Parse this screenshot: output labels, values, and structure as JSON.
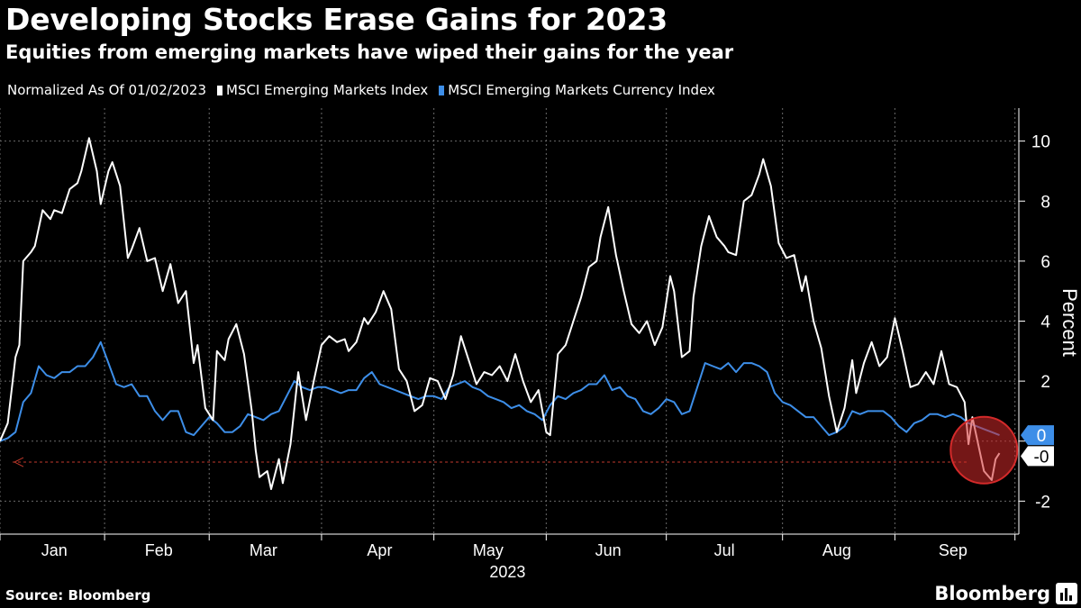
{
  "header": {
    "title": "Developing Stocks Erase Gains for 2023",
    "subtitle": "Equities from emerging markets have wiped their gains for the year"
  },
  "legend": {
    "note": "Normalized As Of 01/02/2023",
    "items": [
      {
        "label": "MSCI Emerging Markets Index",
        "color": "#ffffff"
      },
      {
        "label": "MSCI Emerging Markets Currency Index",
        "color": "#3d8ee8"
      }
    ]
  },
  "footer": {
    "source": "Source: Bloomberg",
    "brand": "Bloomberg"
  },
  "chart_data": {
    "type": "line",
    "title": "Developing Stocks Erase Gains for 2023",
    "subtitle": "Equities from emerging markets have wiped their gains for the year",
    "ylabel": "Percent",
    "xlabel": "2023",
    "ylim": [
      -3.1,
      11.1
    ],
    "xlim": [
      0,
      263
    ],
    "y_ticks": [
      -2,
      0,
      2,
      4,
      6,
      8,
      10
    ],
    "y_tick_labels": [
      "-2",
      "0",
      "2",
      "4",
      "6",
      "8",
      "10"
    ],
    "x_ticks": [
      14,
      41,
      68,
      98,
      126,
      157,
      187,
      216,
      246
    ],
    "x_tick_labels": [
      "Jan",
      "Feb",
      "Mar",
      "Apr",
      "May",
      "Jun",
      "Jul",
      "Aug",
      "Sep"
    ],
    "x_year_label": "2023",
    "x_year_pos": 131,
    "grid": true,
    "reference_line": {
      "value": -0.7,
      "color": "#c0392b"
    },
    "end_labels": [
      {
        "text": "0",
        "value": 0.2,
        "color": "#3d8ee8"
      },
      {
        "text": "-0",
        "value": -0.5,
        "color": "#ffffff"
      }
    ],
    "highlight": {
      "x": 254,
      "y": -0.3,
      "color": "#d42a2a"
    },
    "series": [
      {
        "name": "MSCI Emerging Markets Index",
        "color": "#ffffff",
        "points": [
          [
            0,
            0
          ],
          [
            2,
            0.6
          ],
          [
            4,
            2.8
          ],
          [
            5,
            3.2
          ],
          [
            6,
            6.0
          ],
          [
            8,
            6.3
          ],
          [
            9,
            6.5
          ],
          [
            11,
            7.7
          ],
          [
            13,
            7.4
          ],
          [
            14,
            7.7
          ],
          [
            16,
            7.6
          ],
          [
            18,
            8.4
          ],
          [
            20,
            8.6
          ],
          [
            21,
            9.0
          ],
          [
            23,
            10.1
          ],
          [
            25,
            9.0
          ],
          [
            26,
            7.9
          ],
          [
            28,
            9.0
          ],
          [
            29,
            9.3
          ],
          [
            31,
            8.5
          ],
          [
            33,
            6.1
          ],
          [
            34,
            6.4
          ],
          [
            36,
            7.1
          ],
          [
            38,
            6.0
          ],
          [
            40,
            6.1
          ],
          [
            42,
            5.0
          ],
          [
            44,
            5.9
          ],
          [
            46,
            4.6
          ],
          [
            48,
            5.0
          ],
          [
            50,
            2.6
          ],
          [
            51,
            3.2
          ],
          [
            53,
            1.1
          ],
          [
            55,
            0.7
          ],
          [
            56,
            3.0
          ],
          [
            58,
            2.7
          ],
          [
            59,
            3.4
          ],
          [
            61,
            3.9
          ],
          [
            63,
            2.9
          ],
          [
            65,
            1.0
          ],
          [
            66,
            -0.3
          ],
          [
            67,
            -1.2
          ],
          [
            69,
            -1.0
          ],
          [
            70,
            -1.6
          ],
          [
            72,
            -0.6
          ],
          [
            73,
            -1.4
          ],
          [
            75,
            -0.1
          ],
          [
            77,
            2.3
          ],
          [
            79,
            0.7
          ],
          [
            81,
            2.0
          ],
          [
            83,
            3.2
          ],
          [
            85,
            3.5
          ],
          [
            87,
            3.3
          ],
          [
            89,
            3.4
          ],
          [
            90,
            3.0
          ],
          [
            92,
            3.3
          ],
          [
            94,
            4.1
          ],
          [
            95,
            3.9
          ],
          [
            97,
            4.3
          ],
          [
            99,
            5.0
          ],
          [
            101,
            4.4
          ],
          [
            103,
            2.4
          ],
          [
            105,
            2.0
          ],
          [
            107,
            1.0
          ],
          [
            109,
            1.2
          ],
          [
            111,
            2.1
          ],
          [
            113,
            2.0
          ],
          [
            115,
            1.4
          ],
          [
            117,
            2.2
          ],
          [
            119,
            3.5
          ],
          [
            121,
            2.7
          ],
          [
            123,
            1.9
          ],
          [
            125,
            2.3
          ],
          [
            127,
            2.2
          ],
          [
            129,
            2.5
          ],
          [
            131,
            2.0
          ],
          [
            133,
            2.9
          ],
          [
            135,
            2.0
          ],
          [
            137,
            1.3
          ],
          [
            139,
            1.7
          ],
          [
            141,
            0.3
          ],
          [
            142,
            0.2
          ],
          [
            144,
            2.9
          ],
          [
            146,
            3.2
          ],
          [
            148,
            4.0
          ],
          [
            150,
            4.8
          ],
          [
            152,
            5.8
          ],
          [
            154,
            6.0
          ],
          [
            155,
            6.8
          ],
          [
            157,
            7.8
          ],
          [
            159,
            6.2
          ],
          [
            161,
            5.0
          ],
          [
            163,
            3.9
          ],
          [
            165,
            3.6
          ],
          [
            167,
            4.0
          ],
          [
            169,
            3.2
          ],
          [
            171,
            3.8
          ],
          [
            173,
            5.5
          ],
          [
            174,
            5.0
          ],
          [
            176,
            2.8
          ],
          [
            178,
            3.0
          ],
          [
            179,
            4.8
          ],
          [
            181,
            6.5
          ],
          [
            183,
            7.5
          ],
          [
            185,
            6.8
          ],
          [
            187,
            6.5
          ],
          [
            188,
            6.3
          ],
          [
            190,
            6.2
          ],
          [
            192,
            8.0
          ],
          [
            194,
            8.2
          ],
          [
            196,
            8.9
          ],
          [
            197,
            9.4
          ],
          [
            199,
            8.5
          ],
          [
            201,
            6.6
          ],
          [
            203,
            6.1
          ],
          [
            205,
            6.2
          ],
          [
            207,
            5.0
          ],
          [
            208,
            5.5
          ],
          [
            210,
            4.0
          ],
          [
            212,
            3.1
          ],
          [
            214,
            1.5
          ],
          [
            216,
            0.3
          ],
          [
            218,
            1.1
          ],
          [
            220,
            2.7
          ],
          [
            221,
            1.6
          ],
          [
            223,
            2.6
          ],
          [
            225,
            3.3
          ],
          [
            227,
            2.5
          ],
          [
            229,
            2.8
          ],
          [
            231,
            4.1
          ],
          [
            233,
            3.0
          ],
          [
            235,
            1.8
          ],
          [
            237,
            1.9
          ],
          [
            239,
            2.3
          ],
          [
            241,
            1.9
          ],
          [
            243,
            3.0
          ],
          [
            245,
            1.9
          ],
          [
            247,
            1.8
          ],
          [
            249,
            1.3
          ],
          [
            250,
            -0.1
          ],
          [
            251,
            0.8
          ],
          [
            252,
            0.2
          ],
          [
            253,
            -0.4
          ],
          [
            254,
            -1.0
          ],
          [
            256,
            -1.3
          ],
          [
            257,
            -0.6
          ],
          [
            258,
            -0.4
          ]
        ]
      },
      {
        "name": "MSCI Emerging Markets Currency Index",
        "color": "#3d8ee8",
        "points": [
          [
            0,
            0
          ],
          [
            2,
            0.1
          ],
          [
            4,
            0.3
          ],
          [
            6,
            1.3
          ],
          [
            8,
            1.6
          ],
          [
            10,
            2.5
          ],
          [
            12,
            2.2
          ],
          [
            14,
            2.1
          ],
          [
            16,
            2.3
          ],
          [
            18,
            2.3
          ],
          [
            20,
            2.5
          ],
          [
            22,
            2.5
          ],
          [
            24,
            2.8
          ],
          [
            26,
            3.3
          ],
          [
            28,
            2.6
          ],
          [
            30,
            1.9
          ],
          [
            32,
            1.8
          ],
          [
            34,
            1.9
          ],
          [
            36,
            1.5
          ],
          [
            38,
            1.5
          ],
          [
            40,
            1.0
          ],
          [
            42,
            0.7
          ],
          [
            44,
            1.0
          ],
          [
            46,
            1.0
          ],
          [
            48,
            0.3
          ],
          [
            50,
            0.2
          ],
          [
            52,
            0.5
          ],
          [
            54,
            0.8
          ],
          [
            56,
            0.6
          ],
          [
            58,
            0.3
          ],
          [
            60,
            0.3
          ],
          [
            62,
            0.5
          ],
          [
            64,
            0.9
          ],
          [
            66,
            0.8
          ],
          [
            68,
            0.7
          ],
          [
            70,
            0.9
          ],
          [
            72,
            1.0
          ],
          [
            74,
            1.5
          ],
          [
            76,
            2.0
          ],
          [
            78,
            1.8
          ],
          [
            80,
            1.7
          ],
          [
            82,
            1.8
          ],
          [
            84,
            1.8
          ],
          [
            86,
            1.7
          ],
          [
            88,
            1.6
          ],
          [
            90,
            1.7
          ],
          [
            92,
            1.7
          ],
          [
            94,
            2.1
          ],
          [
            96,
            2.3
          ],
          [
            98,
            1.9
          ],
          [
            100,
            1.8
          ],
          [
            102,
            1.7
          ],
          [
            104,
            1.6
          ],
          [
            106,
            1.5
          ],
          [
            108,
            1.4
          ],
          [
            110,
            1.5
          ],
          [
            112,
            1.5
          ],
          [
            114,
            1.4
          ],
          [
            116,
            1.8
          ],
          [
            118,
            1.9
          ],
          [
            120,
            2.0
          ],
          [
            122,
            1.8
          ],
          [
            124,
            1.7
          ],
          [
            126,
            1.5
          ],
          [
            128,
            1.4
          ],
          [
            130,
            1.3
          ],
          [
            132,
            1.1
          ],
          [
            134,
            1.2
          ],
          [
            136,
            1.0
          ],
          [
            138,
            0.9
          ],
          [
            140,
            0.7
          ],
          [
            142,
            1.2
          ],
          [
            144,
            1.5
          ],
          [
            146,
            1.4
          ],
          [
            148,
            1.6
          ],
          [
            150,
            1.7
          ],
          [
            152,
            1.9
          ],
          [
            154,
            1.9
          ],
          [
            156,
            2.2
          ],
          [
            158,
            1.7
          ],
          [
            160,
            1.8
          ],
          [
            162,
            1.5
          ],
          [
            164,
            1.4
          ],
          [
            166,
            1.0
          ],
          [
            168,
            0.9
          ],
          [
            170,
            1.1
          ],
          [
            172,
            1.4
          ],
          [
            174,
            1.3
          ],
          [
            176,
            0.9
          ],
          [
            178,
            1.0
          ],
          [
            180,
            1.8
          ],
          [
            182,
            2.6
          ],
          [
            184,
            2.5
          ],
          [
            186,
            2.4
          ],
          [
            188,
            2.6
          ],
          [
            190,
            2.3
          ],
          [
            192,
            2.6
          ],
          [
            194,
            2.6
          ],
          [
            196,
            2.5
          ],
          [
            198,
            2.3
          ],
          [
            200,
            1.6
          ],
          [
            202,
            1.3
          ],
          [
            204,
            1.2
          ],
          [
            206,
            1.0
          ],
          [
            208,
            0.8
          ],
          [
            210,
            0.8
          ],
          [
            212,
            0.5
          ],
          [
            214,
            0.2
          ],
          [
            216,
            0.3
          ],
          [
            218,
            0.5
          ],
          [
            220,
            1.0
          ],
          [
            222,
            0.9
          ],
          [
            224,
            1.0
          ],
          [
            226,
            1.0
          ],
          [
            228,
            1.0
          ],
          [
            230,
            0.8
          ],
          [
            232,
            0.5
          ],
          [
            234,
            0.3
          ],
          [
            236,
            0.6
          ],
          [
            238,
            0.7
          ],
          [
            240,
            0.9
          ],
          [
            242,
            0.9
          ],
          [
            244,
            0.8
          ],
          [
            246,
            0.9
          ],
          [
            248,
            0.8
          ],
          [
            250,
            0.6
          ],
          [
            252,
            0.5
          ],
          [
            254,
            0.4
          ],
          [
            256,
            0.3
          ],
          [
            258,
            0.2
          ]
        ]
      }
    ]
  }
}
